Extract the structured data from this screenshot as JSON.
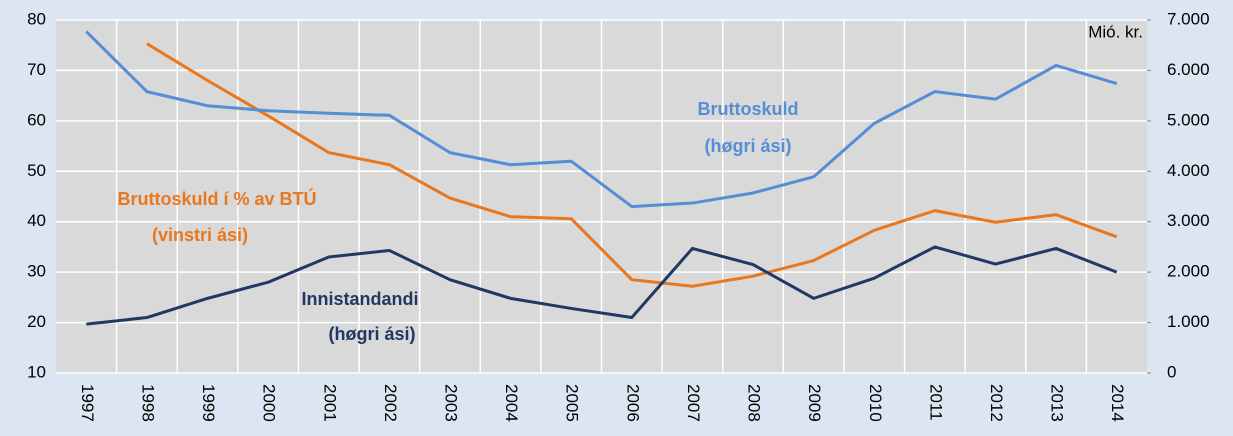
{
  "chart_data": {
    "type": "line",
    "categories": [
      "1997",
      "1998",
      "1999",
      "2000",
      "2001",
      "2002",
      "2003",
      "2004",
      "2005",
      "2006",
      "2007",
      "2008",
      "2009",
      "2010",
      "2011",
      "2012",
      "2013",
      "2014"
    ],
    "series": [
      {
        "name": "Bruttoskuld í % av BTÚ",
        "color": "#e8771e",
        "axis": "y",
        "values": [
          null,
          75.3,
          68,
          61,
          53.7,
          51.3,
          44.7,
          41,
          40.6,
          28.5,
          27.2,
          29.2,
          32.3,
          38.3,
          42.2,
          39.9,
          41.4,
          37
        ]
      },
      {
        "name": "Bruttoskuld",
        "color": "#558ed5",
        "axis": "y2",
        "values": [
          6770,
          5580,
          5300,
          5200,
          5150,
          5110,
          4370,
          4130,
          4200,
          3300,
          3370,
          3570,
          3890,
          4950,
          5580,
          5430,
          6100,
          5740
        ]
      },
      {
        "name": "Innistandandi",
        "color": "#1f3864",
        "axis": "y2",
        "values": [
          970,
          1100,
          1480,
          1800,
          2300,
          2430,
          1850,
          1480,
          1280,
          1100,
          2470,
          2150,
          1480,
          1880,
          2500,
          2160,
          2470,
          2000
        ]
      }
    ],
    "ylim": [
      10,
      80
    ],
    "yticks": [
      10,
      20,
      30,
      40,
      50,
      60,
      70,
      80
    ],
    "y2lim": [
      0,
      7000
    ],
    "y2ticks": [
      0,
      {
        "value": 1000,
        "label": "1.000"
      },
      {
        "value": 2000,
        "label": "2.000"
      },
      {
        "value": 3000,
        "label": "3.000"
      },
      {
        "value": 4000,
        "label": "4.000"
      },
      {
        "value": 5000,
        "label": "5.000"
      },
      {
        "value": 6000,
        "label": "6.000"
      },
      {
        "value": 7000,
        "label": "7.000"
      }
    ],
    "y2_label": "Mió. kr.",
    "annotations": [
      {
        "lines": [
          "Bruttoskuld",
          "(høgri ási)"
        ],
        "color": "#558ed5"
      },
      {
        "lines": [
          "Bruttoskuld í % av BTÚ",
          "(vinstri ási)"
        ],
        "color": "#e8771e"
      },
      {
        "lines": [
          "Innistandandi",
          "(høgri ási)"
        ],
        "color": "#1f3864"
      }
    ],
    "grid": true
  }
}
